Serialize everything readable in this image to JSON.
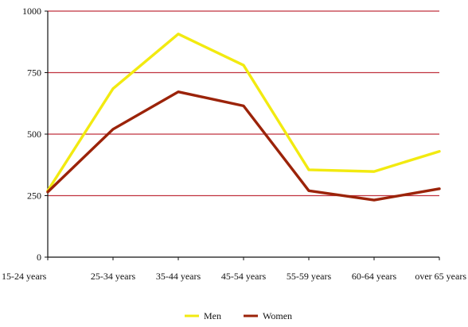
{
  "chart_data": {
    "type": "line",
    "title": "",
    "xlabel": "",
    "ylabel": "",
    "categories": [
      "15-24 years",
      "25-34 years",
      "35-44 years",
      "45-54 years",
      "55-59 years",
      "60-64 years",
      "over 65 years"
    ],
    "series": [
      {
        "name": "Men",
        "color": "#f2ea10",
        "values": [
          270,
          685,
          907,
          780,
          355,
          348,
          430
        ]
      },
      {
        "name": "Women",
        "color": "#9b2309",
        "values": [
          265,
          520,
          672,
          615,
          270,
          232,
          278
        ]
      }
    ],
    "ylim": [
      0,
      1000
    ],
    "yticks": [
      0,
      250,
      500,
      750,
      1000
    ],
    "grid": true,
    "grid_color": "#c0323f",
    "legend_position": "bottom-center"
  }
}
